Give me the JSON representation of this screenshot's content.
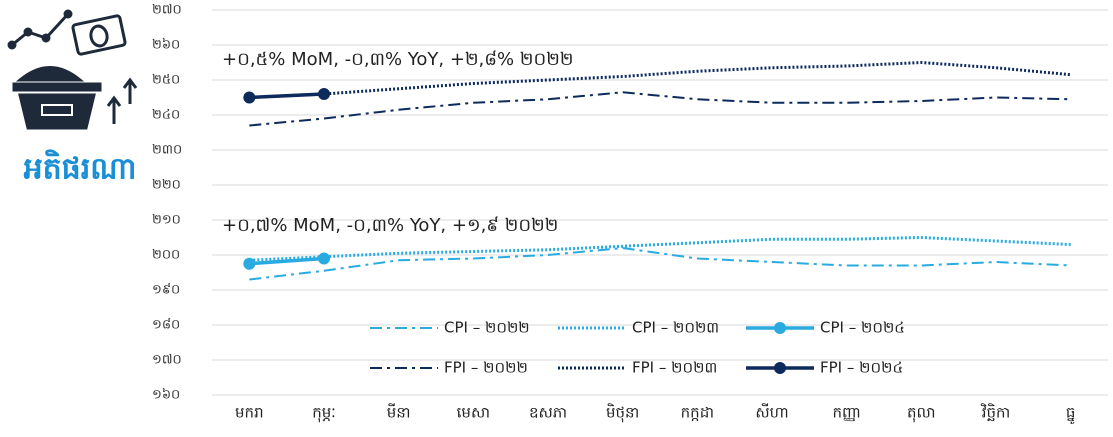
{
  "chart_data": {
    "type": "line",
    "title": "អតិផរណា",
    "annotations": [
      "+០,៥% MoM, -០,៣% YoY, +២,៨% ២០២២",
      "+០,៧% MoM, -០,៣% YoY, +១,៩ ២០២២"
    ],
    "categories": [
      "មករា",
      "កុម្ភៈ",
      "មីនា",
      "មេសា",
      "ឧសភា",
      "មិថុនា",
      "កក្កដា",
      "សីហា",
      "កញ្ញា",
      "តុលា",
      "វិច្ឆិកា",
      "ធ្នូ"
    ],
    "series": [
      {
        "name": "CPI – ២០២២",
        "color": "#29abe2",
        "dash": "dashdot",
        "markers": false,
        "values": [
          193,
          195.5,
          198.5,
          199,
          200,
          202,
          199,
          198,
          197,
          197,
          198,
          197
        ]
      },
      {
        "name": "CPI – ២០២៣",
        "color": "#29abe2",
        "dash": "dotted",
        "markers": false,
        "values": [
          198.5,
          199.5,
          200.5,
          201,
          201.5,
          202.5,
          203.5,
          204.5,
          204.5,
          205,
          204,
          203
        ]
      },
      {
        "name": "CPI – ២០២៤",
        "color": "#29abe2",
        "dash": "solid",
        "markers": true,
        "values": [
          197.5,
          199,
          null,
          null,
          null,
          null,
          null,
          null,
          null,
          null,
          null,
          null
        ]
      },
      {
        "name": "FPI – ២០២២",
        "color": "#0d2a5c",
        "dash": "dashdot",
        "markers": false,
        "values": [
          237,
          239,
          241.5,
          243.5,
          244.5,
          246.5,
          244.5,
          243.5,
          243.5,
          244,
          245,
          244.5
        ]
      },
      {
        "name": "FPI – ២០២៣",
        "color": "#0d2a5c",
        "dash": "dotted",
        "markers": false,
        "values": [
          245,
          246,
          247.5,
          249,
          250,
          251,
          252.5,
          253.5,
          254,
          255,
          253.5,
          251.5
        ]
      },
      {
        "name": "FPI – ២០២៤",
        "color": "#0d2a5c",
        "dash": "solid",
        "markers": true,
        "values": [
          245,
          246,
          null,
          null,
          null,
          null,
          null,
          null,
          null,
          null,
          null,
          null
        ]
      }
    ],
    "ylim": [
      160,
      270
    ],
    "yticks": [
      {
        "value": 160,
        "label": "១៦០"
      },
      {
        "value": 170,
        "label": "១៧០"
      },
      {
        "value": 180,
        "label": "១៨០"
      },
      {
        "value": 190,
        "label": "១៩០"
      },
      {
        "value": 200,
        "label": "២០០"
      },
      {
        "value": 210,
        "label": "២១០"
      },
      {
        "value": 220,
        "label": "២២០"
      },
      {
        "value": 230,
        "label": "២៣០"
      },
      {
        "value": 240,
        "label": "២៤០"
      },
      {
        "value": 250,
        "label": "២៥០"
      },
      {
        "value": 260,
        "label": "២៦០"
      },
      {
        "value": 270,
        "label": "២៧០"
      }
    ],
    "grid": true
  }
}
